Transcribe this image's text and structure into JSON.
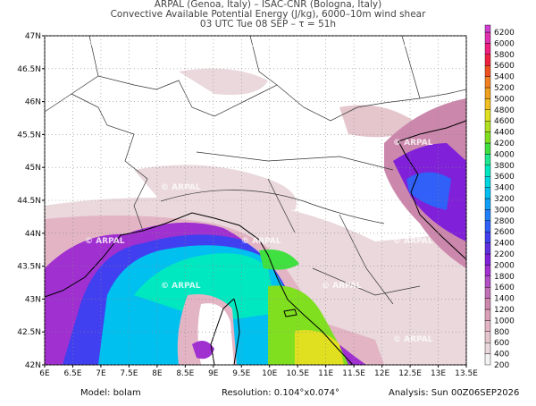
{
  "header": {
    "line1": "ARPAL (Genoa, Italy)  –  ISAC-CNR (Bologna, Italy)",
    "line2": "Convective Available Potential Energy (J/kg), 6000–10m wind shear",
    "line3": "03 UTC Tue 08 SEP  –  τ = 51h"
  },
  "map": {
    "lonlim": [
      6,
      13.5
    ],
    "latlim": [
      42,
      47
    ],
    "grid": true,
    "watermark": "© ARPAL",
    "lon_ticks": [
      {
        "value": 6,
        "label": "6E"
      },
      {
        "value": 6.5,
        "label": "6.5E"
      },
      {
        "value": 7,
        "label": "7E"
      },
      {
        "value": 7.5,
        "label": "7.5E"
      },
      {
        "value": 8,
        "label": "8E"
      },
      {
        "value": 8.5,
        "label": "8.5E"
      },
      {
        "value": 9,
        "label": "9E"
      },
      {
        "value": 9.5,
        "label": "9.5E"
      },
      {
        "value": 10,
        "label": "10E"
      },
      {
        "value": 10.5,
        "label": "10.5E"
      },
      {
        "value": 11,
        "label": "11E"
      },
      {
        "value": 11.5,
        "label": "11.5E"
      },
      {
        "value": 12,
        "label": "12E"
      },
      {
        "value": 12.5,
        "label": "12.5E"
      },
      {
        "value": 13,
        "label": "13E"
      },
      {
        "value": 13.5,
        "label": "13.5E"
      }
    ],
    "lat_ticks": [
      {
        "value": 42,
        "label": "42N"
      },
      {
        "value": 42.5,
        "label": "42.5N"
      },
      {
        "value": 43,
        "label": "43N"
      },
      {
        "value": 43.5,
        "label": "43.5N"
      },
      {
        "value": 44,
        "label": "44N"
      },
      {
        "value": 44.5,
        "label": "44.5N"
      },
      {
        "value": 45,
        "label": "45N"
      },
      {
        "value": 45.5,
        "label": "45.5N"
      },
      {
        "value": 46,
        "label": "46N"
      },
      {
        "value": 46.5,
        "label": "46.5N"
      },
      {
        "value": 47,
        "label": "47N"
      }
    ]
  },
  "colorbar": {
    "levels": [
      200,
      400,
      600,
      800,
      1000,
      1200,
      1400,
      1600,
      1800,
      2000,
      2200,
      2400,
      2600,
      2800,
      3000,
      3200,
      3400,
      3600,
      3800,
      4000,
      4200,
      4400,
      4600,
      4800,
      5000,
      5200,
      5400,
      5600,
      5800,
      6000,
      6200
    ],
    "colors": [
      "#f2f2f2",
      "#ead8dc",
      "#e4c6cc",
      "#e2b4c4",
      "#d8a0b8",
      "#cc88ac",
      "#c070b4",
      "#b050c4",
      "#a030d0",
      "#8020d8",
      "#6030e0",
      "#4040f0",
      "#3060f8",
      "#2080f8",
      "#10a0f8",
      "#00c0f0",
      "#00d8e0",
      "#00e8c0",
      "#20e890",
      "#40e040",
      "#80e020",
      "#b0e020",
      "#e0e020",
      "#f0c020",
      "#f0a020",
      "#f08020",
      "#f05020",
      "#f02040",
      "#f02080",
      "#e030b0",
      "#d040d0"
    ]
  },
  "footer": {
    "model": "Model: bolam",
    "resolution": "Resolution: 0.104°x0.074°",
    "analysis": "Analysis: Sun 00Z06SEP2026"
  }
}
